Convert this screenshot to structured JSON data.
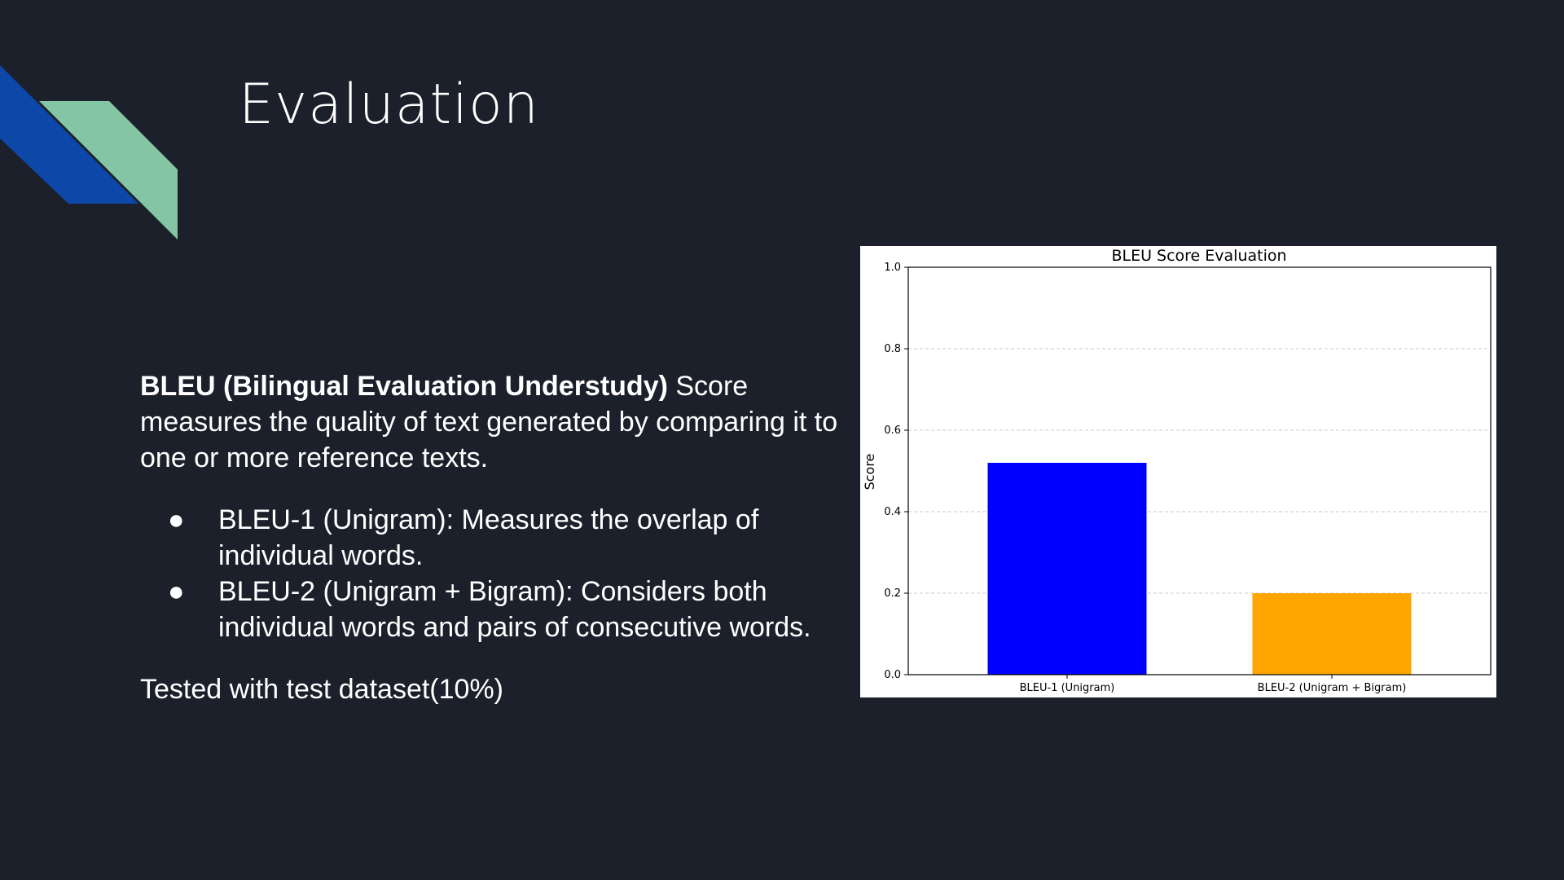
{
  "slide": {
    "title": "Evaluation",
    "intro_bold": "BLEU (Bilingual Evaluation Understudy)",
    "intro_rest": " Score measures the quality of text generated by comparing it to one or more reference texts.",
    "bullets": [
      {
        "text": "BLEU-1 (Unigram): Measures the overlap of individual words."
      },
      {
        "text": "BLEU-2 (Unigram + Bigram): Considers both individual words and pairs of consecutive words."
      }
    ],
    "bullet_glyph": "●",
    "footer": "Tested with test dataset(10%)"
  },
  "colors": {
    "background": "#1c202b",
    "deco_blue": "#0d47a8",
    "deco_green": "#84c6a4"
  },
  "chart_data": {
    "type": "bar",
    "title": "BLEU Score Evaluation",
    "xlabel": "",
    "ylabel": "Score",
    "categories": [
      "BLEU-1 (Unigram)",
      "BLEU-2 (Unigram + Bigram)"
    ],
    "values": [
      0.52,
      0.2
    ],
    "colors": [
      "#0000ff",
      "#ffa500"
    ],
    "ylim": [
      0,
      1.0
    ],
    "yticks": [
      "0.0",
      "0.2",
      "0.4",
      "0.6",
      "0.8",
      "1.0"
    ],
    "grid": "y-dashed",
    "legend": "none"
  }
}
